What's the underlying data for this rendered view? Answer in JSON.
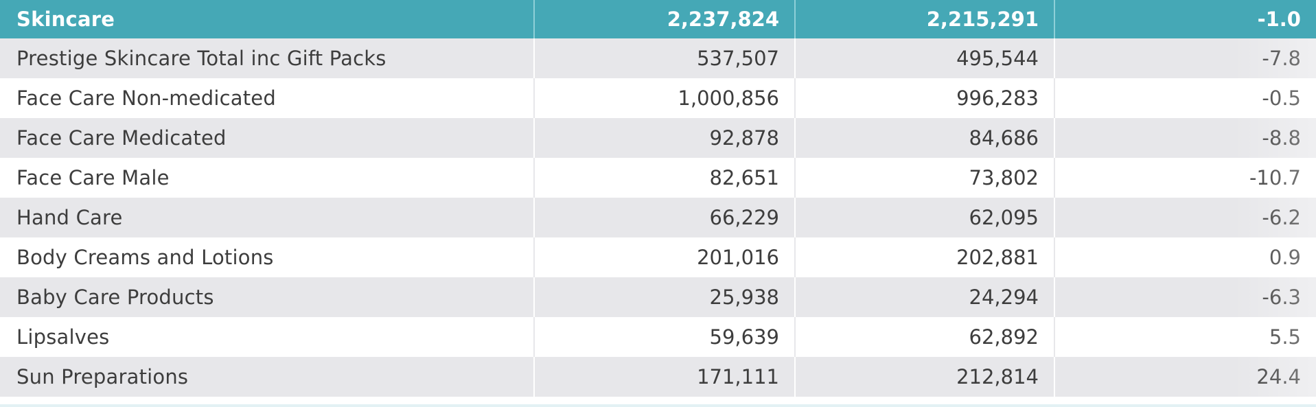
{
  "table": {
    "header": {
      "label": "Skincare",
      "col2": "2,237,824",
      "col3": "2,215,291",
      "col4": "-1.0"
    },
    "rows": [
      {
        "label": "Prestige Skincare Total inc Gift Packs",
        "col2": "537,507",
        "col3": "495,544",
        "col4": "-7.8"
      },
      {
        "label": "Face Care Non-medicated",
        "col2": "1,000,856",
        "col3": "996,283",
        "col4": "-0.5"
      },
      {
        "label": "Face Care Medicated",
        "col2": "92,878",
        "col3": "84,686",
        "col4": "-8.8"
      },
      {
        "label": "Face Care Male",
        "col2": "82,651",
        "col3": "73,802",
        "col4": "-10.7"
      },
      {
        "label": "Hand Care",
        "col2": "66,229",
        "col3": "62,095",
        "col4": "-6.2"
      },
      {
        "label": "Body Creams and Lotions",
        "col2": "201,016",
        "col3": "202,881",
        "col4": "0.9"
      },
      {
        "label": "Baby Care Products",
        "col2": "25,938",
        "col3": "24,294",
        "col4": "-6.3"
      },
      {
        "label": "Lipsalves",
        "col2": "59,639",
        "col3": "62,892",
        "col4": "5.5"
      },
      {
        "label": "Sun Preparations",
        "col2": "171,111",
        "col3": "212,814",
        "col4": "24.4"
      }
    ]
  },
  "colors": {
    "header_bg": "#45a8b6",
    "header_text": "#ffffff",
    "shaded_row_bg": "#e7e7ea",
    "plain_row_bg": "#ffffff",
    "body_text": "#3d3d3d"
  }
}
